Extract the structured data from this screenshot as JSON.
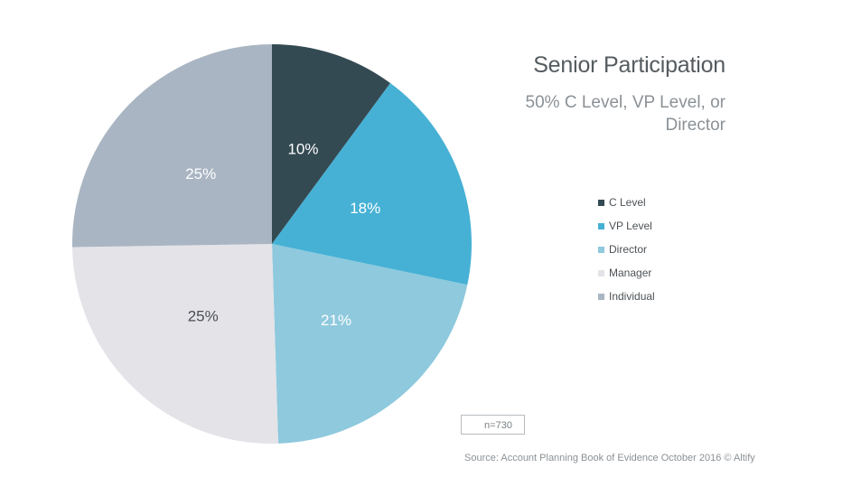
{
  "chart_data": {
    "type": "pie",
    "title": "Senior Participation",
    "subtitle": "50% C Level, VP Level, or Director",
    "categories": [
      "C Level",
      "VP Level",
      "Director",
      "Manager",
      "Individual"
    ],
    "values": [
      10,
      18,
      21,
      25,
      25
    ],
    "data_labels": [
      "10%",
      "18%",
      "21%",
      "25%",
      "25%"
    ],
    "colors": [
      "#344a53",
      "#46b1d5",
      "#8ec9dd",
      "#e3e3e8",
      "#a9b5c2"
    ],
    "label_colors": [
      "#ffffff",
      "#ffffff",
      "#ffffff",
      "#4a4f53",
      "#ffffff"
    ],
    "legend_position": "right",
    "start_angle": "12 o'clock",
    "direction": "clockwise"
  },
  "sample_size": "n=730",
  "source": "Source: Account Planning Book of Evidence October 2016 © Altify"
}
